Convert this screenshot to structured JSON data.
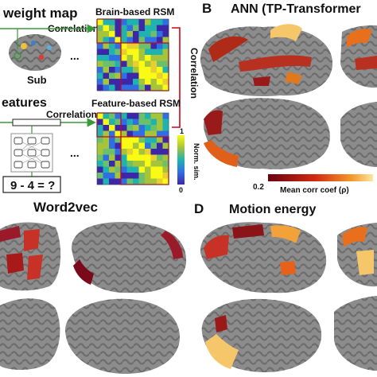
{
  "panelA": {
    "weight_map_title": "weight map",
    "correlation_top": "Correlation",
    "brain_rsm_title": "Brain-based RSM",
    "sub_label": "Sub",
    "dots": "...",
    "features_title": "eatures",
    "correlation_bottom": "Correlation",
    "feature_rsm_title": "Feature-based RSM",
    "correlation_vertical": "Correlation",
    "dots_bottom": "...",
    "equation": "9 - 4 = ?",
    "colorbar_max": "1",
    "colorbar_min": "0",
    "colorbar_label": "Norm. sim."
  },
  "panelB": {
    "letter": "B",
    "title": "ANN (TP-Transformer",
    "colorbar_min": "0.2",
    "colorbar_label": "Mean corr coef (ρ)"
  },
  "panelC": {
    "title": "Word2vec"
  },
  "panelD": {
    "letter": "D",
    "title": "Motion energy"
  },
  "colors": {
    "brain_gray": "#8c8c8c",
    "sulcus_gray": "#5e5e5e",
    "dark_red": "#7a0a1a",
    "orange": "#e8601a",
    "yellow": "#f4d27a",
    "rsm_frame": "#d4001a",
    "arrow_green": "#3a9a3a"
  }
}
